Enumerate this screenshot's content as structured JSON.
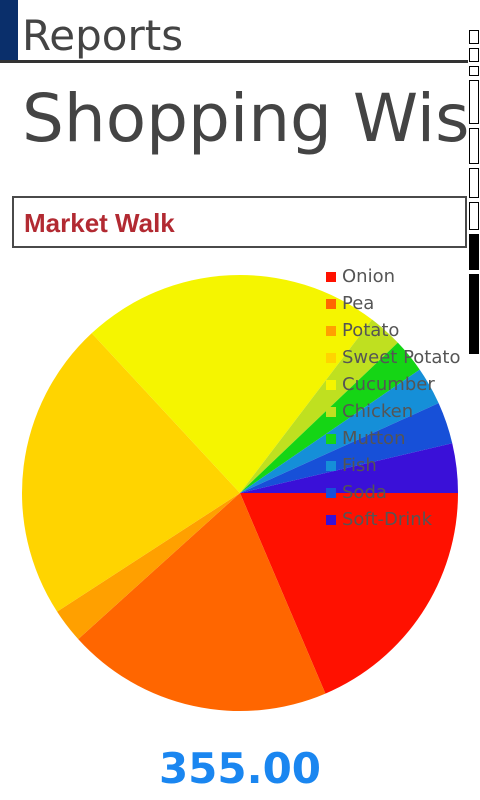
{
  "header": {
    "app_title": "Reports",
    "accent_color": "#0a2f6b"
  },
  "page": {
    "title": "Shopping Wise"
  },
  "store": {
    "name": "Market Walk",
    "color": "#b22a32"
  },
  "total": {
    "value": "355.00",
    "color": "#1a86f0"
  },
  "chart_data": {
    "type": "pie",
    "title": "",
    "legend_position": "top-right",
    "start_angle": "3 o'clock",
    "direction": "clockwise",
    "slices": [
      {
        "label": "Onion",
        "value": 66,
        "color": "#ff1100"
      },
      {
        "label": "Pea",
        "value": 70,
        "color": "#ff6600"
      },
      {
        "label": "Potato",
        "value": 9,
        "color": "#ffa000"
      },
      {
        "label": "Sweet Potato",
        "value": 79,
        "color": "#ffd400"
      },
      {
        "label": "Cucumber",
        "value": 79,
        "color": "#f5f500"
      },
      {
        "label": "Chicken",
        "value": 9,
        "color": "#bfe020"
      },
      {
        "label": "Mutton",
        "value": 9,
        "color": "#15d515"
      },
      {
        "label": "Fish",
        "value": 10,
        "color": "#158fd8"
      },
      {
        "label": "Soda",
        "value": 11,
        "color": "#1750d8"
      },
      {
        "label": "Soft-Drink",
        "value": 13,
        "color": "#3a10d8"
      }
    ]
  }
}
